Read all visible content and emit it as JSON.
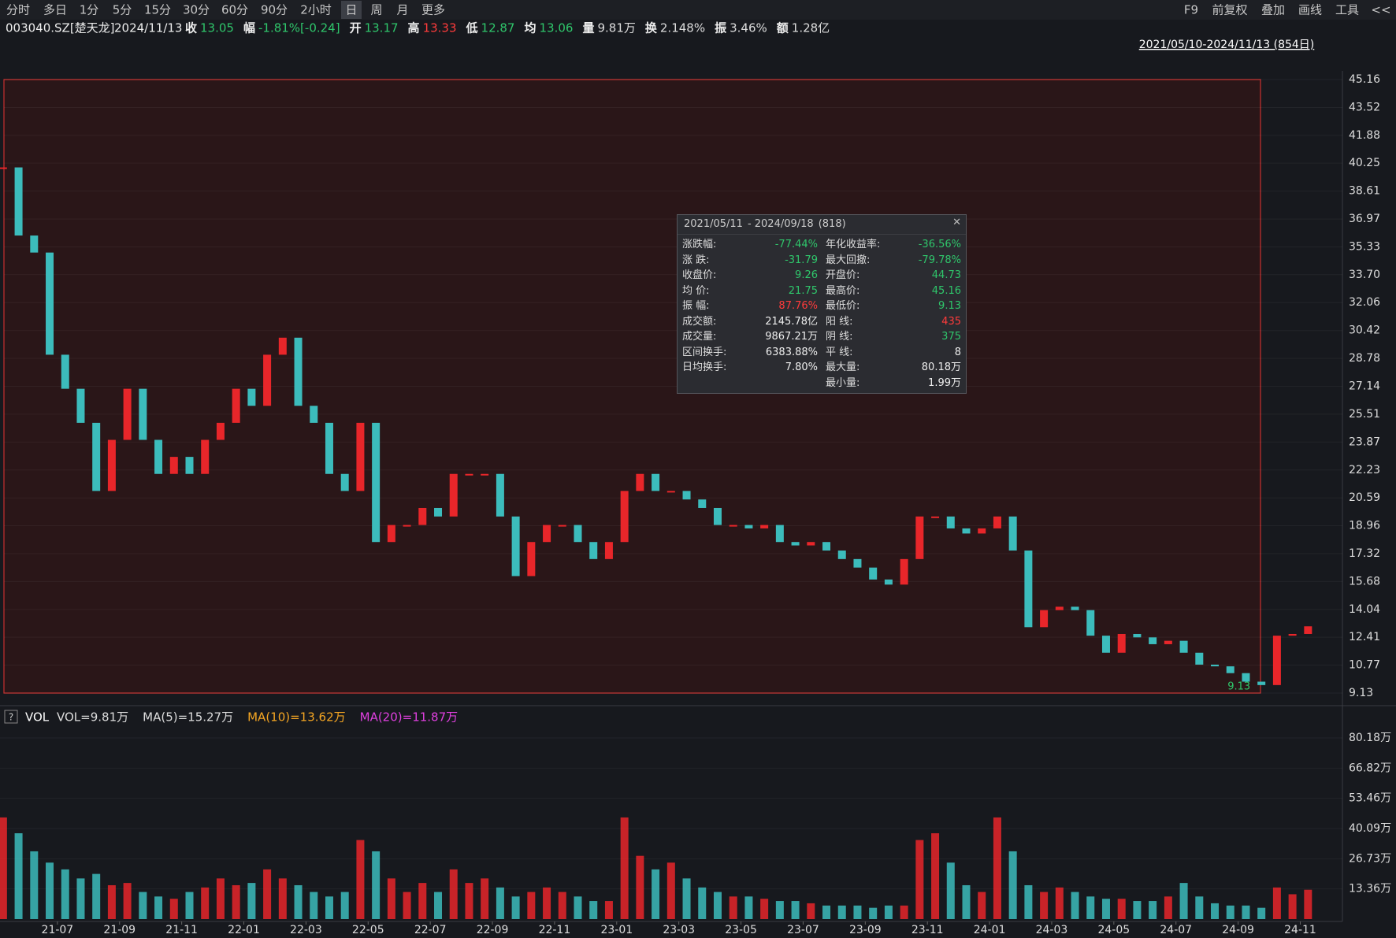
{
  "toolbar": {
    "periods": [
      "分时",
      "多日",
      "1分",
      "5分",
      "15分",
      "30分",
      "60分",
      "90分",
      "2小时",
      "日",
      "周",
      "月",
      "更多"
    ],
    "active": 9,
    "tools": [
      "F9",
      "前复权",
      "叠加",
      "画线",
      "工具",
      "<<"
    ]
  },
  "quote": {
    "code": "003040.SZ[楚天龙]",
    "date": "2024/11/13",
    "items": [
      {
        "label": "收",
        "value": "13.05",
        "color": "#2fc66b"
      },
      {
        "label": "幅",
        "value": "-1.81%[-0.24]",
        "color": "#2fc66b"
      },
      {
        "label": "开",
        "value": "13.17",
        "color": "#2fc66b"
      },
      {
        "label": "高",
        "value": "13.33",
        "color": "#ff3b3b"
      },
      {
        "label": "低",
        "value": "12.87",
        "color": "#2fc66b"
      },
      {
        "label": "均",
        "value": "13.06",
        "color": "#2fc66b"
      },
      {
        "label": "量",
        "value": "9.81万",
        "color": "#dddddd"
      },
      {
        "label": "换",
        "value": "2.148%",
        "color": "#dddddd"
      },
      {
        "label": "振",
        "value": "3.46%",
        "color": "#dddddd"
      },
      {
        "label": "额",
        "value": "1.28亿",
        "color": "#dddddd"
      }
    ],
    "range": "2021/05/10-2024/11/13 (854日)"
  },
  "tooltip": {
    "start": "2021/05/11",
    "end": "- 2024/09/18",
    "count": "(818)",
    "left": [
      {
        "label": "涨跌幅:",
        "value": "-77.44%",
        "color": "#2fc66b"
      },
      {
        "label": "涨  跌:",
        "value": "-31.79",
        "color": "#2fc66b"
      },
      {
        "label": "收盘价:",
        "value": "9.26",
        "color": "#2fc66b"
      },
      {
        "label": "均  价:",
        "value": "21.75",
        "color": "#2fc66b"
      },
      {
        "label": "振  幅:",
        "value": "87.76%",
        "color": "#ff3b3b"
      },
      {
        "label": "成交额:",
        "value": "2145.78亿",
        "color": "#eeeeee"
      },
      {
        "label": "成交量:",
        "value": "9867.21万",
        "color": "#eeeeee"
      },
      {
        "label": "区间换手:",
        "value": "6383.88%",
        "color": "#eeeeee"
      },
      {
        "label": "日均换手:",
        "value": "7.80%",
        "color": "#eeeeee"
      }
    ],
    "right": [
      {
        "label": "年化收益率:",
        "value": "-36.56%",
        "color": "#2fc66b"
      },
      {
        "label": "最大回撤:",
        "value": "-79.78%",
        "color": "#2fc66b"
      },
      {
        "label": "开盘价:",
        "value": "44.73",
        "color": "#2fc66b"
      },
      {
        "label": "最高价:",
        "value": "45.16",
        "color": "#2fc66b"
      },
      {
        "label": "最低价:",
        "value": "9.13",
        "color": "#2fc66b"
      },
      {
        "label": "阳  线:",
        "value": "435",
        "color": "#ff3b3b"
      },
      {
        "label": "阴  线:",
        "value": "375",
        "color": "#2fc66b"
      },
      {
        "label": "平  线:",
        "value": "8",
        "color": "#eeeeee"
      },
      {
        "label": "最大量:",
        "value": "80.18万",
        "color": "#eeeeee"
      },
      {
        "label": "最小量:",
        "value": "1.99万",
        "color": "#eeeeee"
      }
    ]
  },
  "chart_data": [
    {
      "type": "candlestick",
      "up_color": "#e8262a",
      "down_color": "#3cbcbc",
      "annotation": "9.13",
      "values": [
        40,
        36,
        35,
        29,
        27,
        25,
        21,
        24,
        27,
        24,
        22,
        23,
        22,
        24,
        25,
        27,
        26,
        29,
        30,
        26,
        25,
        22,
        21,
        25,
        18,
        19,
        19,
        20,
        19.5,
        22,
        22,
        22,
        19.5,
        16,
        18,
        19,
        19,
        18,
        17,
        18,
        21,
        22,
        21,
        21,
        20.5,
        20,
        19,
        19,
        18.8,
        19,
        18,
        17.8,
        18,
        17.5,
        17,
        16.5,
        15.8,
        15.5,
        17,
        19.5,
        19.5,
        18.8,
        18.5,
        18.8,
        19.5,
        17.5,
        13,
        14,
        14.2,
        14,
        12.5,
        11.5,
        12.6,
        12.4,
        12,
        12.2,
        11.5,
        10.8,
        10.7,
        10.3,
        9.8,
        9.6,
        12.5,
        12.6,
        13.05
      ],
      "ylim": [
        9.13,
        45.16
      ],
      "yticks": [
        45.16,
        43.52,
        41.88,
        40.25,
        38.61,
        36.97,
        35.33,
        {
          "value": 33.7,
          "label": "33.70"
        },
        32.06,
        30.42,
        28.78,
        27.14,
        25.51,
        23.87,
        22.23,
        20.59,
        18.96,
        17.32,
        15.68,
        14.04,
        12.41,
        10.77,
        9.13
      ],
      "grid": true
    },
    {
      "type": "bar",
      "title": "VOL",
      "categories": [
        null,
        null,
        null,
        null,
        "21-07",
        null,
        null,
        null,
        "21-09",
        null,
        null,
        null,
        "21-11",
        null,
        null,
        null,
        "22-01",
        null,
        null,
        null,
        "22-03",
        null,
        null,
        null,
        "22-05",
        null,
        null,
        null,
        "22-07",
        null,
        null,
        null,
        "22-09",
        null,
        null,
        null,
        "22-11",
        null,
        null,
        null,
        "23-01",
        null,
        null,
        null,
        "23-03",
        null,
        null,
        null,
        "23-05",
        null,
        null,
        null,
        "23-07",
        null,
        null,
        null,
        "23-09",
        null,
        null,
        null,
        "23-11",
        null,
        null,
        null,
        "24-01",
        null,
        null,
        null,
        "24-03",
        null,
        null,
        null,
        "24-05",
        null,
        null,
        null,
        "24-07",
        null,
        null,
        null,
        "24-09",
        null,
        null,
        null,
        "24-11"
      ],
      "series": [
        {
          "name": "VOL=9.81万",
          "color": "#dddddd",
          "values": [
            45,
            38,
            30,
            25,
            22,
            18,
            20,
            15,
            16,
            12,
            10,
            9,
            12,
            14,
            18,
            15,
            16,
            22,
            18,
            15,
            12,
            10,
            12,
            35,
            30,
            18,
            12,
            16,
            12,
            22,
            16,
            18,
            14,
            10,
            12,
            14,
            12,
            10,
            8,
            8,
            45,
            28,
            22,
            25,
            18,
            14,
            12,
            10,
            10,
            9,
            8,
            8,
            7,
            6,
            6,
            6,
            5,
            6,
            6,
            35,
            38,
            25,
            15,
            12,
            45,
            30,
            15,
            12,
            14,
            12,
            10,
            9,
            9,
            8,
            8,
            10,
            16,
            10,
            7,
            6,
            6,
            5,
            14,
            11,
            13
          ]
        }
      ],
      "indicators": [
        {
          "name": "MA(5)=15.27万",
          "color": "#dddddd"
        },
        {
          "name": "MA(10)=13.62万",
          "color": "#f5a623"
        },
        {
          "name": "MA(20)=11.87万",
          "color": "#e040e0"
        }
      ],
      "ylim": [
        0,
        80.18
      ],
      "yticks": [
        {
          "value": 80.18,
          "label": "80.18万"
        },
        {
          "value": 66.82,
          "label": "66.82万"
        },
        {
          "value": 53.46,
          "label": "53.46万"
        },
        {
          "value": 40.09,
          "label": "40.09万"
        },
        {
          "value": 26.73,
          "label": "26.73万"
        },
        {
          "value": 13.36,
          "label": "13.36万"
        }
      ],
      "grid": true
    }
  ]
}
